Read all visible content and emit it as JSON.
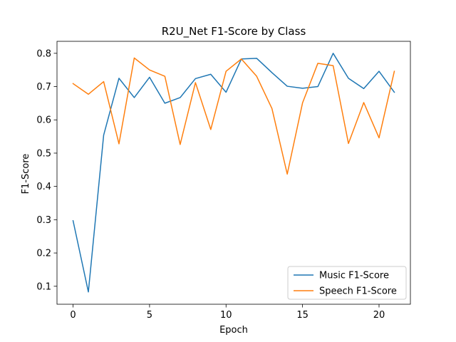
{
  "chart_data": {
    "type": "line",
    "title": "R2U_Net F1-Score by Class",
    "xlabel": "Epoch",
    "ylabel": "F1-Score",
    "x": [
      0,
      1,
      2,
      3,
      4,
      5,
      6,
      7,
      8,
      9,
      10,
      11,
      12,
      13,
      14,
      15,
      16,
      17,
      18,
      19,
      20,
      21
    ],
    "xlim": [
      -1.05,
      22.05
    ],
    "ylim": [
      0.046,
      0.836
    ],
    "xticks": [
      0,
      5,
      10,
      15,
      20
    ],
    "xtick_labels": [
      "0",
      "5",
      "10",
      "15",
      "20"
    ],
    "yticks": [
      0.1,
      0.2,
      0.3,
      0.4,
      0.5,
      0.6,
      0.7,
      0.8
    ],
    "ytick_labels": [
      "0.1",
      "0.2",
      "0.3",
      "0.4",
      "0.5",
      "0.6",
      "0.7",
      "0.8"
    ],
    "grid": false,
    "legend_position": "lower-right",
    "series": [
      {
        "name": "Music F1-Score",
        "color": "#1f77b4",
        "values": [
          0.297,
          0.083,
          0.554,
          0.725,
          0.667,
          0.728,
          0.65,
          0.667,
          0.724,
          0.737,
          0.683,
          0.783,
          0.785,
          0.742,
          0.701,
          0.695,
          0.7,
          0.8,
          0.725,
          0.694,
          0.746,
          0.683
        ]
      },
      {
        "name": "Speech F1-Score",
        "color": "#ff7f0e",
        "values": [
          0.709,
          0.677,
          0.715,
          0.528,
          0.786,
          0.75,
          0.731,
          0.526,
          0.712,
          0.571,
          0.746,
          0.783,
          0.731,
          0.634,
          0.437,
          0.651,
          0.77,
          0.763,
          0.529,
          0.652,
          0.546,
          0.746
        ]
      }
    ]
  }
}
